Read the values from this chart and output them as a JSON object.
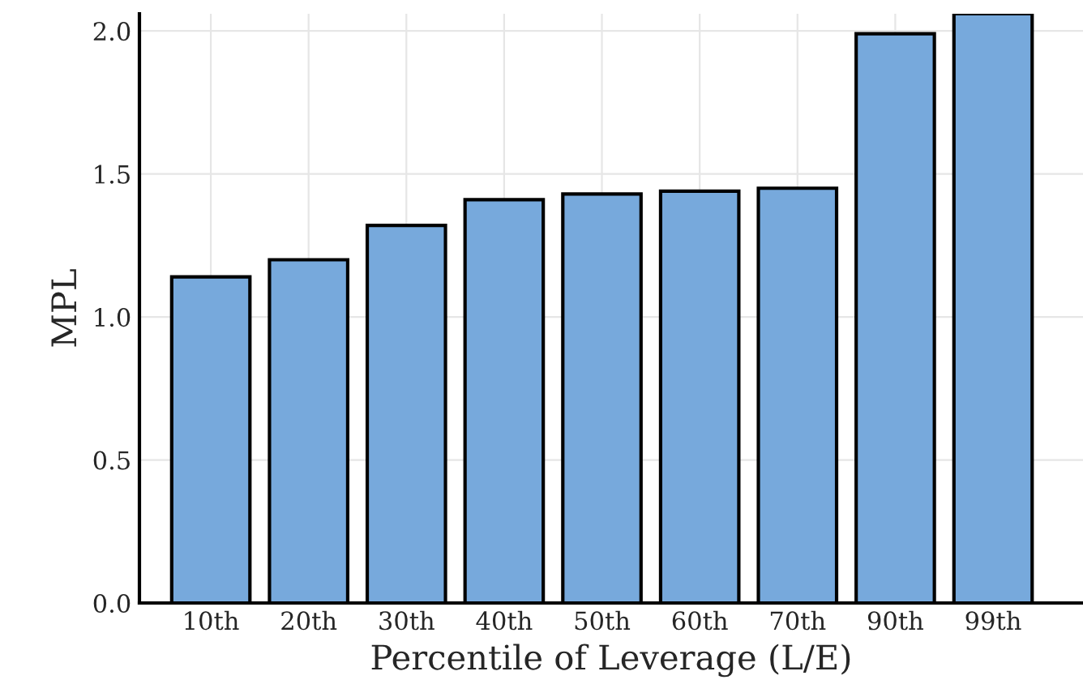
{
  "chart_data": {
    "type": "bar",
    "xlabel": "Percentile of Leverage (L/E)",
    "ylabel": "MPL",
    "categories": [
      "10th",
      "20th",
      "30th",
      "40th",
      "50th",
      "60th",
      "70th",
      "90th",
      "99th"
    ],
    "values": [
      1.14,
      1.2,
      1.32,
      1.41,
      1.43,
      1.44,
      1.45,
      1.99,
      2.06
    ],
    "color": "#77a9dc",
    "ylim": [
      0,
      2.06
    ],
    "yticks": [
      {
        "value": 0,
        "label": "0.0"
      },
      {
        "value": 0.5,
        "label": "0.5"
      },
      {
        "value": 1,
        "label": "1.0"
      },
      {
        "value": 1.5,
        "label": "1.5"
      },
      {
        "value": 2,
        "label": "2.0"
      }
    ],
    "grid": true
  }
}
